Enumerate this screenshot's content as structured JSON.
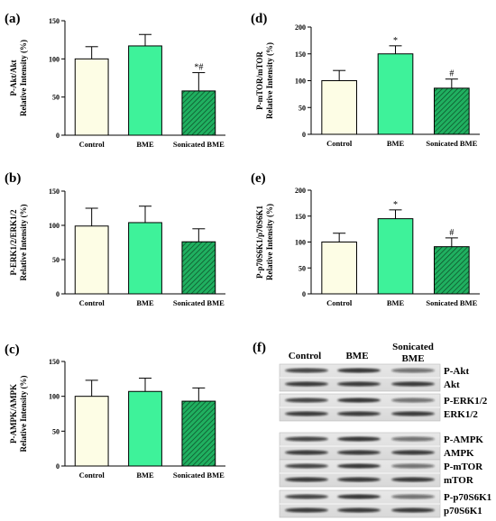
{
  "colors": {
    "control": "#fdfde5",
    "bme": "#3ef29a",
    "sonicated": "#20b060",
    "stroke": "#000000"
  },
  "chart_data": [
    {
      "id": "a",
      "panel_label": "(a)",
      "type": "bar",
      "ylabel": "P-Akt/Akt",
      "ylabel2": "Relative Intensity (%)",
      "categories": [
        "Control",
        "BME",
        "Sonicated BME"
      ],
      "values": [
        100,
        117,
        58
      ],
      "errors": [
        16,
        15,
        24
      ],
      "ylim": [
        0,
        150
      ],
      "yticks": [
        0,
        50,
        100,
        150
      ],
      "annotations": [
        "",
        "",
        "*#"
      ]
    },
    {
      "id": "b",
      "panel_label": "(b)",
      "type": "bar",
      "ylabel": "P-ERK1/2/ERK1/2",
      "ylabel2": "Relative Intensity (%)",
      "categories": [
        "Control",
        "BME",
        "Sonicated BME"
      ],
      "values": [
        99,
        104,
        76
      ],
      "errors": [
        26,
        24,
        19
      ],
      "ylim": [
        0,
        150
      ],
      "yticks": [
        0,
        50,
        100,
        150
      ],
      "annotations": [
        "",
        "",
        ""
      ]
    },
    {
      "id": "c",
      "panel_label": "(c)",
      "type": "bar",
      "ylabel": "P-AMPK/AMPK",
      "ylabel2": "Relative Intensity (%)",
      "categories": [
        "Control",
        "BME",
        "Sonicated BME"
      ],
      "values": [
        100,
        107,
        93
      ],
      "errors": [
        23,
        19,
        19
      ],
      "ylim": [
        0,
        150
      ],
      "yticks": [
        0,
        50,
        100,
        150
      ],
      "annotations": [
        "",
        "",
        ""
      ]
    },
    {
      "id": "d",
      "panel_label": "(d)",
      "type": "bar",
      "ylabel": "P-mTOR/mTOR",
      "ylabel2": "Relative Intensity (%)",
      "categories": [
        "Control",
        "BME",
        "Sonicated BME"
      ],
      "values": [
        100,
        150,
        86
      ],
      "errors": [
        19,
        15,
        17
      ],
      "ylim": [
        0,
        200
      ],
      "yticks": [
        0,
        50,
        100,
        150,
        200
      ],
      "annotations": [
        "",
        "*",
        "#"
      ]
    },
    {
      "id": "e",
      "panel_label": "(e)",
      "type": "bar",
      "ylabel": "P-p70S6K1/p70S6K1",
      "ylabel2": "Relative Intensity (%)",
      "categories": [
        "Control",
        "BME",
        "Sonicated BME"
      ],
      "values": [
        100,
        145,
        91
      ],
      "errors": [
        17,
        17,
        17
      ],
      "ylim": [
        0,
        200
      ],
      "yticks": [
        0,
        50,
        100,
        150,
        200
      ],
      "annotations": [
        "",
        "*",
        "#"
      ]
    }
  ],
  "blot": {
    "panel_label": "(f)",
    "columns": [
      "Control",
      "BME",
      "Sonicated",
      "BME"
    ],
    "rows": [
      "P-Akt",
      "Akt",
      "P-ERK1/2",
      "ERK1/2",
      "P-AMPK",
      "AMPK",
      "P-mTOR",
      "mTOR",
      "P-p70S6K1",
      "p70S6K1"
    ]
  }
}
